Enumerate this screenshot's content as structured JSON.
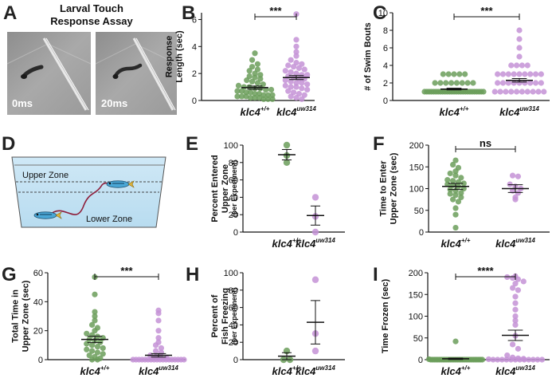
{
  "panel_letters": {
    "A": "A",
    "B": "B",
    "C": "C",
    "D": "D",
    "E": "E",
    "F": "F",
    "G": "G",
    "H": "H",
    "I": "I"
  },
  "panel_A": {
    "title_line1": "Larval Touch",
    "title_line2": "Response Assay",
    "frame1_label": "0ms",
    "frame2_label": "20ms"
  },
  "panel_D": {
    "upper_zone": "Upper Zone",
    "lower_zone": "Lower Zone"
  },
  "groups": {
    "wt_base": "klc4",
    "wt_sup": "+/+",
    "mut_base": "klc4",
    "mut_sup": "uw314"
  },
  "colors": {
    "wt": "#6b9e5a",
    "mut": "#c492d6"
  },
  "chart_data": [
    {
      "panel": "B",
      "type": "scatter",
      "ylabel_lines": [
        "Response",
        "Length (sec)"
      ],
      "ylim": [
        0,
        6.5
      ],
      "yticks": [
        0,
        2,
        4,
        6
      ],
      "significance": "***",
      "series": [
        {
          "group": "wt",
          "mean": 0.95,
          "sem": 0.12,
          "values": [
            3.5,
            3.0,
            2.7,
            2.5,
            2.3,
            2.2,
            2.0,
            1.9,
            1.8,
            1.7,
            1.6,
            1.5,
            1.4,
            1.3,
            1.2,
            1.1,
            1.0,
            1.0,
            0.9,
            0.9,
            0.8,
            0.8,
            0.7,
            0.7,
            0.6,
            0.6,
            0.5,
            0.5,
            0.4,
            0.4,
            0.4,
            0.3,
            0.3,
            0.3,
            0.2,
            0.2,
            0.2,
            0.1,
            0.1,
            0.1
          ]
        },
        {
          "group": "mut",
          "mean": 1.7,
          "sem": 0.15,
          "values": [
            6.4,
            4.5,
            4.0,
            3.6,
            3.3,
            3.0,
            2.8,
            2.7,
            2.6,
            2.5,
            2.4,
            2.3,
            2.2,
            2.1,
            2.0,
            1.9,
            1.9,
            1.8,
            1.7,
            1.6,
            1.6,
            1.5,
            1.4,
            1.3,
            1.3,
            1.2,
            1.1,
            1.0,
            1.0,
            0.9,
            0.8,
            0.7,
            0.6,
            0.5,
            0.4,
            0.3,
            0.2,
            0.1
          ]
        }
      ]
    },
    {
      "panel": "C",
      "type": "scatter",
      "ylabel_lines": [
        "# of Swim Bouts"
      ],
      "ylim": [
        0,
        10
      ],
      "yticks": [
        0,
        2,
        4,
        6,
        8,
        10
      ],
      "significance": "***",
      "series": [
        {
          "group": "wt",
          "mean": 1.3,
          "sem": 0.1,
          "values": [
            3,
            3,
            3,
            3,
            3,
            2,
            2,
            2,
            2,
            2,
            2,
            2,
            2,
            1,
            1,
            1,
            1,
            1,
            1,
            1,
            1,
            1,
            1,
            1,
            1,
            1,
            1,
            1,
            1,
            1,
            1,
            1,
            1,
            1,
            1,
            1,
            1,
            1,
            1,
            1
          ]
        },
        {
          "group": "mut",
          "mean": 2.3,
          "sem": 0.2,
          "values": [
            8,
            7,
            6,
            5,
            4,
            4,
            4,
            4,
            3,
            3,
            3,
            3,
            3,
            3,
            3,
            3,
            3,
            2,
            2,
            2,
            2,
            2,
            2,
            2,
            2,
            2,
            1,
            1,
            1,
            1,
            1,
            1,
            1,
            1,
            1,
            1
          ]
        }
      ]
    },
    {
      "panel": "E",
      "type": "scatter",
      "ylabel_lines": [
        "Percent Entered",
        "Upper Zone"
      ],
      "ylabel_small": "(per Experiment)",
      "ylim": [
        0,
        100
      ],
      "yticks": [
        0,
        20,
        40,
        60,
        80,
        100
      ],
      "significance": "",
      "series": [
        {
          "group": "wt",
          "mean": 89,
          "sem": 6,
          "values": [
            100,
            88,
            80
          ]
        },
        {
          "group": "mut",
          "mean": 19,
          "sem": 11,
          "values": [
            40,
            18,
            0
          ]
        }
      ]
    },
    {
      "panel": "F",
      "type": "scatter",
      "ylabel_lines": [
        "Time to Enter",
        "Upper Zone (sec)"
      ],
      "ylim": [
        0,
        200
      ],
      "yticks": [
        0,
        50,
        100,
        150,
        200
      ],
      "significance": "ns",
      "series": [
        {
          "group": "wt",
          "mean": 105,
          "sem": 7,
          "values": [
            165,
            155,
            148,
            140,
            135,
            130,
            125,
            120,
            118,
            115,
            112,
            110,
            108,
            105,
            100,
            98,
            95,
            90,
            88,
            85,
            80,
            75,
            70,
            55,
            40,
            10
          ]
        },
        {
          "group": "mut",
          "mean": 100,
          "sem": 9,
          "values": [
            130,
            128,
            110,
            105,
            100,
            95,
            90,
            80,
            75
          ]
        }
      ]
    },
    {
      "panel": "G",
      "type": "scatter",
      "ylabel_lines": [
        "Total Time in",
        "Upper Zone (sec)"
      ],
      "ylim": [
        0,
        60
      ],
      "yticks": [
        0,
        20,
        40,
        60
      ],
      "significance": "***",
      "series": [
        {
          "group": "wt",
          "mean": 14,
          "sem": 2.2,
          "values": [
            57,
            45,
            33,
            30,
            27,
            24,
            22,
            20,
            18,
            17,
            16,
            15,
            14,
            13,
            12,
            11,
            10,
            9,
            8,
            7,
            6,
            5,
            4,
            3,
            2,
            1,
            0,
            0
          ]
        },
        {
          "group": "mut",
          "mean": 3,
          "sem": 1.2,
          "values": [
            34,
            32,
            27,
            20,
            15,
            12,
            10,
            8,
            6,
            5,
            3,
            2,
            1,
            1,
            0,
            0,
            0,
            0,
            0,
            0,
            0,
            0,
            0,
            0,
            0,
            0,
            0,
            0,
            0,
            0,
            0,
            0
          ]
        }
      ]
    },
    {
      "panel": "H",
      "type": "scatter",
      "ylabel_lines": [
        "Percent of",
        "Fish Freezing"
      ],
      "ylabel_small": "(per Experiment)",
      "ylim": [
        0,
        100
      ],
      "yticks": [
        0,
        20,
        40,
        60,
        80,
        100
      ],
      "significance": "",
      "series": [
        {
          "group": "wt",
          "mean": 4,
          "sem": 4,
          "values": [
            10,
            0,
            0
          ]
        },
        {
          "group": "mut",
          "mean": 43,
          "sem": 25,
          "values": [
            92,
            30,
            10
          ]
        }
      ]
    },
    {
      "panel": "I",
      "type": "scatter",
      "ylabel_lines": [
        "Time Frozen (sec)"
      ],
      "ylim": [
        0,
        200
      ],
      "yticks": [
        0,
        50,
        100,
        150,
        200
      ],
      "significance": "****",
      "series": [
        {
          "group": "wt",
          "mean": 2,
          "sem": 1.5,
          "values": [
            42,
            1,
            0,
            0,
            0,
            0,
            0,
            0,
            0,
            0,
            0,
            0,
            0,
            0,
            0,
            0,
            0,
            0,
            0,
            0,
            0,
            0,
            0,
            0,
            0,
            0,
            0,
            0,
            0,
            0,
            0,
            0
          ]
        },
        {
          "group": "mut",
          "mean": 56,
          "sem": 12,
          "values": [
            192,
            190,
            188,
            185,
            180,
            175,
            165,
            160,
            145,
            130,
            115,
            100,
            90,
            80,
            55,
            35,
            25,
            10,
            5,
            3,
            2,
            1,
            0,
            0,
            0,
            0,
            0,
            0,
            0,
            0,
            0,
            0,
            0,
            0
          ]
        }
      ]
    }
  ]
}
